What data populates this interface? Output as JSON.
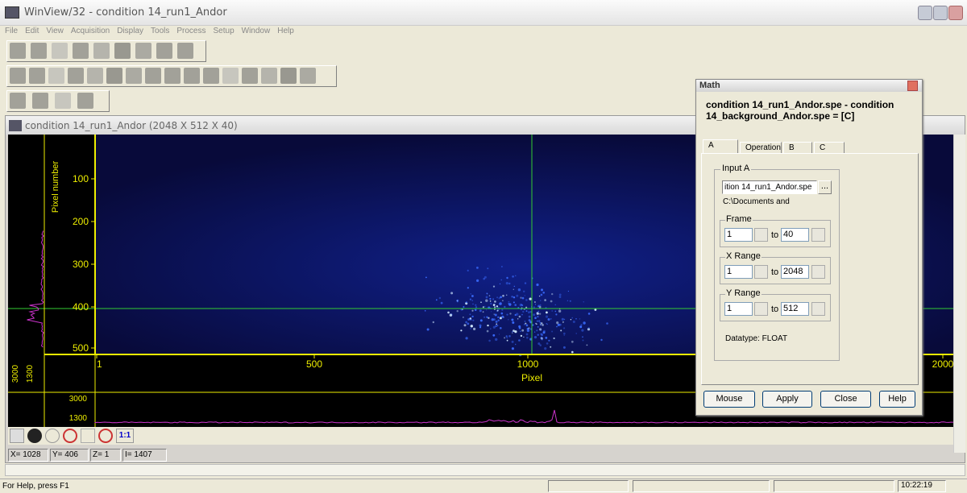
{
  "app": {
    "title": "WinView/32 - condition 14_run1_Andor"
  },
  "menu": [
    "File",
    "Edit",
    "View",
    "Acquisition",
    "Display",
    "Tools",
    "Process",
    "Setup",
    "Window",
    "Help"
  ],
  "toolbar": {
    "zoom_label": "1:1"
  },
  "image_window": {
    "title": "condition 14_run1_Andor (2048 X 512 X 40)",
    "y_axis_label": "Pixel number",
    "y_ticks": [
      "100",
      "200",
      "300",
      "400",
      "500"
    ],
    "x_axis_label": "Pixel",
    "x_ticks": [
      "1",
      "500",
      "1000",
      "2000"
    ],
    "side_profile_ticks": [
      "3000",
      "1300"
    ],
    "bottom_profile_ticks": [
      "3000",
      "1300"
    ]
  },
  "cursor": [
    "X= 1028",
    "Y= 406",
    "Z= 1",
    "I= 1407"
  ],
  "status_bar": {
    "help": "For Help, press F1",
    "time": "10:22:19"
  },
  "math_dialog": {
    "title": "Math",
    "header": "condition 14_run1_Andor.spe - condition 14_background_Andor.spe = [C]",
    "tabs": [
      "A",
      "Operation",
      "B",
      "C"
    ],
    "input_group": "Input A",
    "file_field": "ition 14_run1_Andor.spe",
    "browse": "...",
    "path": "C:\\Documents and",
    "to_label": "to",
    "ranges": [
      {
        "label": "Frame",
        "from": "1",
        "to": "40"
      },
      {
        "label": "X Range",
        "from": "1",
        "to": "2048"
      },
      {
        "label": "Y Range",
        "from": "1",
        "to": "512"
      }
    ],
    "datatype": "Datatype:  FLOAT",
    "buttons": [
      "Mouse",
      "Apply",
      "Close",
      "Help"
    ]
  }
}
